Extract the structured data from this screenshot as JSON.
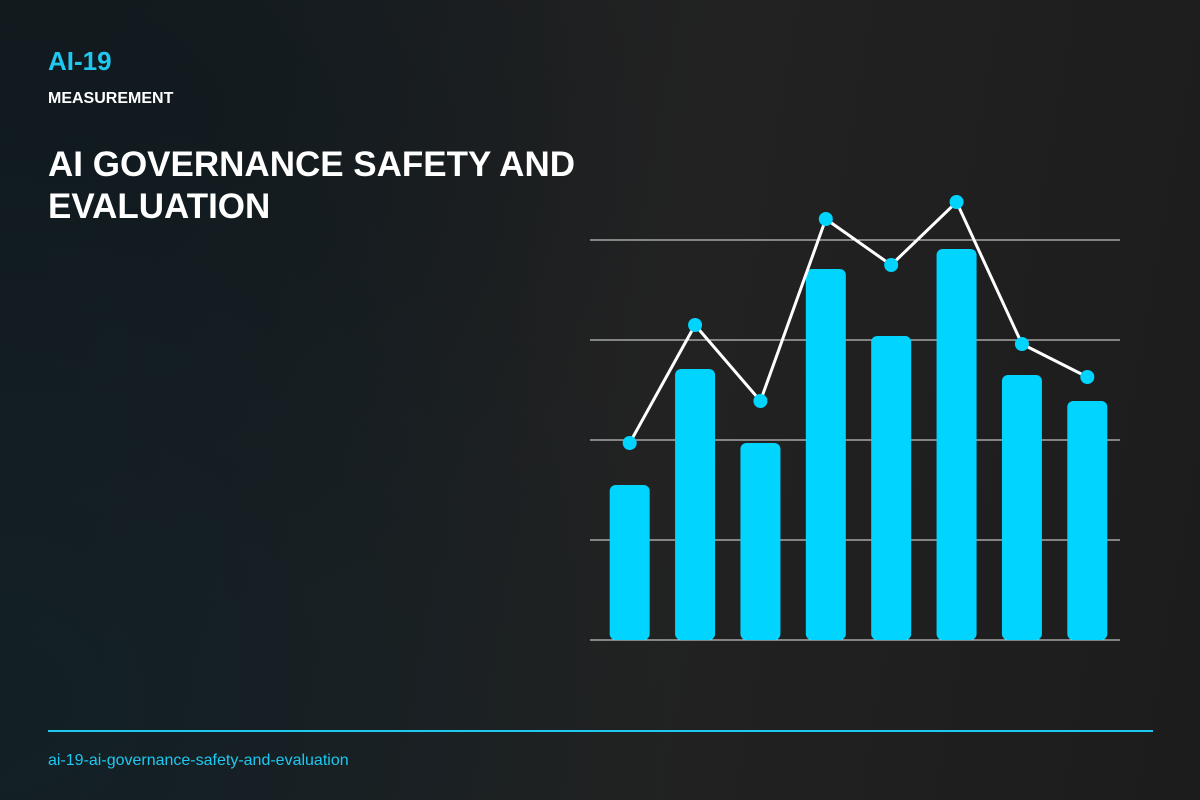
{
  "header": {
    "code": "AI-19",
    "category": "MEASUREMENT"
  },
  "title": "AI GOVERNANCE SAFETY AND EVALUATION",
  "footer": {
    "slug": "ai-19-ai-governance-safety-and-evaluation"
  },
  "chart_data": {
    "type": "combo",
    "ylim": [
      0,
      4.8
    ],
    "yticks": [
      0,
      1,
      2,
      3,
      4
    ],
    "grid": true,
    "grid_color": "#e8e8e8",
    "series": [
      {
        "type": "bar",
        "color": "#00d4ff",
        "values": [
          1.55,
          2.71,
          1.97,
          3.71,
          3.04,
          3.91,
          2.65,
          2.39
        ]
      },
      {
        "type": "line",
        "color": "#ffffff",
        "marker_color": "#00d4ff",
        "values": [
          1.97,
          3.15,
          2.39,
          4.21,
          3.75,
          4.38,
          2.96,
          2.63
        ]
      }
    ]
  }
}
